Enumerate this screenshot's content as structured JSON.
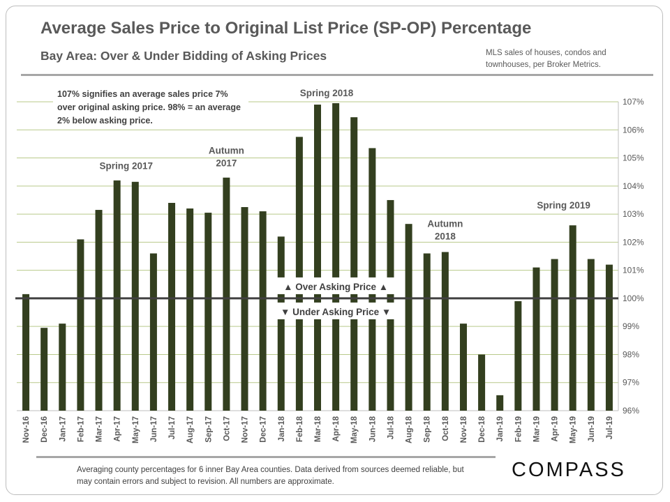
{
  "title": "Average Sales Price to Original List Price (SP-OP) Percentage",
  "subtitle": "Bay Area: Over & Under Bidding of Asking Prices",
  "source_note": "MLS sales of houses, condos and townhouses, per Broker Metrics.",
  "explanation": "107% signifies an average sales price 7% over original asking price. 98% = an average 2% below asking price.",
  "footer": "Averaging county percentages for 6 inner Bay Area counties. Data derived from sources deemed reliable, but may contain errors and subject to revision. All numbers are approximate.",
  "logo": "COMPASS",
  "colors": {
    "bar": "#333f1f",
    "grid": "#b8c98a",
    "baseline": "#404040",
    "text": "#595959"
  },
  "chart_data": {
    "type": "bar",
    "categories": [
      "Nov-16",
      "Dec-16",
      "Jan-17",
      "Feb-17",
      "Mar-17",
      "Apr-17",
      "May-17",
      "Jun-17",
      "Jul-17",
      "Aug-17",
      "Sep-17",
      "Oct-17",
      "Nov-17",
      "Dec-17",
      "Jan-18",
      "Feb-18",
      "Mar-18",
      "Apr-18",
      "May-18",
      "Jun-18",
      "Jul-18",
      "Aug-18",
      "Sep-18",
      "Oct-18",
      "Nov-18",
      "Dec-18",
      "Jan-19",
      "Feb-19",
      "Mar-19",
      "Apr-19",
      "May-19",
      "Jun-19",
      "Jul-19"
    ],
    "values": [
      100.15,
      98.95,
      99.1,
      102.1,
      103.15,
      104.2,
      104.15,
      101.6,
      103.4,
      103.2,
      103.05,
      104.3,
      103.25,
      103.1,
      102.2,
      105.75,
      106.9,
      106.95,
      106.45,
      105.35,
      103.5,
      102.65,
      101.6,
      101.65,
      99.1,
      98.0,
      96.55,
      99.9,
      101.1,
      101.4,
      102.6,
      101.4,
      101.2
    ],
    "ylim": [
      96,
      107
    ],
    "yticks": [
      "96%",
      "97%",
      "98%",
      "99%",
      "100%",
      "101%",
      "102%",
      "103%",
      "104%",
      "105%",
      "106%",
      "107%"
    ],
    "grid": true,
    "baseline": 100,
    "annotations": [
      {
        "text": "Spring 2017",
        "index": 5.5,
        "value": 104.6
      },
      {
        "text": "Autumn 2017",
        "index": 11,
        "value": 104.7
      },
      {
        "text": "Spring 2018",
        "index": 16.5,
        "value": 107.2
      },
      {
        "text": "Autumn 2018",
        "index": 23,
        "value": 102.1
      },
      {
        "text": "Spring 2019",
        "index": 29.5,
        "value": 103.2
      }
    ],
    "over_label": "▲ Over Asking Price ▲",
    "under_label": "▼ Under Asking Price ▼"
  }
}
